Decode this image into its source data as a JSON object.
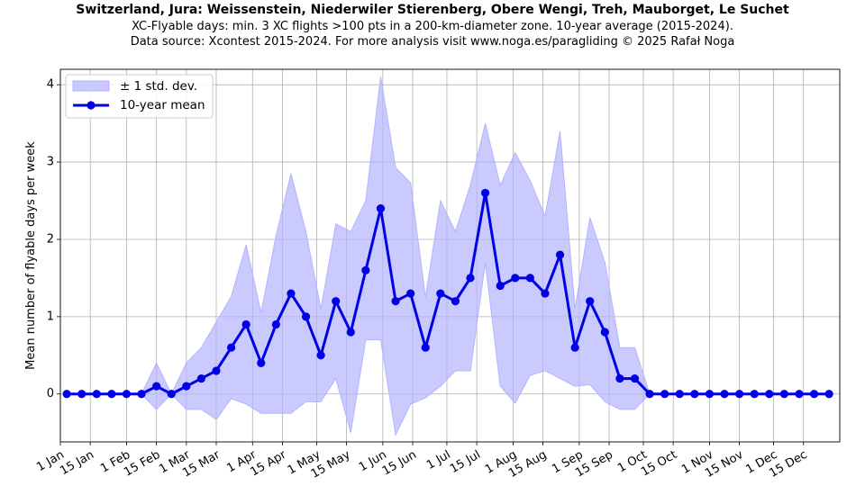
{
  "chart_data": {
    "type": "line",
    "title": "Switzerland, Jura: Weissenstein, Niederwiler Stierenberg, Obere Wengi, Treh, Mauborget, Le Suchet",
    "subtitle": "XC-Flyable days: min. 3 XC flights >100 pts in a 200-km-diameter zone. 10-year average (2015-2024).",
    "source": "Data source: Xcontest 2015-2024. For more analysis visit www.noga.es/paragliding © 2025 Rafał Noga",
    "xlabel": "",
    "ylabel": "Mean number of flyable days per week",
    "ylim": [
      -0.62,
      4.2
    ],
    "yticks": [
      0,
      1,
      2,
      3,
      4
    ],
    "grid": true,
    "legend_position": "upper-left",
    "x_tick_labels": [
      "1 Jan",
      "15 Jan",
      "1 Feb",
      "15 Feb",
      "1 Mar",
      "15 Mar",
      "1 Apr",
      "15 Apr",
      "1 May",
      "15 May",
      "1 Jun",
      "15 Jun",
      "1 Jul",
      "15 Jul",
      "1 Aug",
      "15 Aug",
      "1 Sep",
      "15 Sep",
      "1 Oct",
      "15 Oct",
      "1 Nov",
      "15 Nov",
      "1 Dec",
      "15 Dec"
    ],
    "x_tick_days": [
      0,
      14,
      31,
      45,
      59,
      73,
      90,
      104,
      120,
      134,
      151,
      165,
      181,
      195,
      212,
      226,
      243,
      257,
      273,
      287,
      304,
      318,
      334,
      348
    ],
    "x_range_days": [
      0,
      365
    ],
    "week_start_days": [
      3,
      10,
      17,
      24,
      31,
      38,
      45,
      52,
      59,
      66,
      73,
      80,
      87,
      94,
      101,
      108,
      115,
      122,
      129,
      136,
      143,
      150,
      157,
      164,
      171,
      178,
      185,
      192,
      199,
      206,
      213,
      220,
      227,
      234,
      241,
      248,
      255,
      262,
      269,
      276,
      283,
      290,
      297,
      304,
      311,
      318,
      325,
      332,
      339,
      346,
      353,
      360
    ],
    "series": [
      {
        "name": "10-year mean",
        "color": "#0000e6",
        "marker": "circle",
        "values": [
          0,
          0,
          0,
          0,
          0,
          0,
          0.1,
          0,
          0.1,
          0.2,
          0.3,
          0.6,
          0.9,
          0.4,
          0.9,
          1.3,
          1.0,
          0.5,
          1.2,
          0.8,
          1.6,
          2.4,
          1.2,
          1.3,
          0.6,
          1.3,
          1.2,
          1.5,
          2.6,
          1.4,
          1.5,
          1.5,
          1.3,
          1.8,
          0.6,
          1.2,
          0.8,
          0.2,
          0.2,
          0,
          0,
          0,
          0,
          0,
          0,
          0,
          0,
          0,
          0,
          0,
          0,
          0
        ]
      }
    ],
    "band": {
      "name": "± 1 std. dev.",
      "color": "#b3b3ff",
      "std": [
        0,
        0,
        0,
        0,
        0,
        0,
        0.3,
        0,
        0.3,
        0.4,
        0.63,
        0.66,
        1.03,
        0.65,
        1.15,
        1.55,
        1.1,
        0.6,
        1.0,
        1.3,
        0.9,
        1.7,
        1.73,
        1.43,
        0.65,
        1.2,
        0.9,
        1.2,
        0.9,
        1.3,
        1.62,
        1.26,
        1.0,
        1.6,
        0.5,
        1.08,
        0.9,
        0.4,
        0.4,
        0,
        0,
        0,
        0,
        0,
        0,
        0,
        0,
        0,
        0,
        0,
        0,
        0
      ]
    },
    "legend": [
      {
        "label": "± 1 std. dev.",
        "kind": "band"
      },
      {
        "label": "10-year mean",
        "kind": "line"
      }
    ]
  }
}
